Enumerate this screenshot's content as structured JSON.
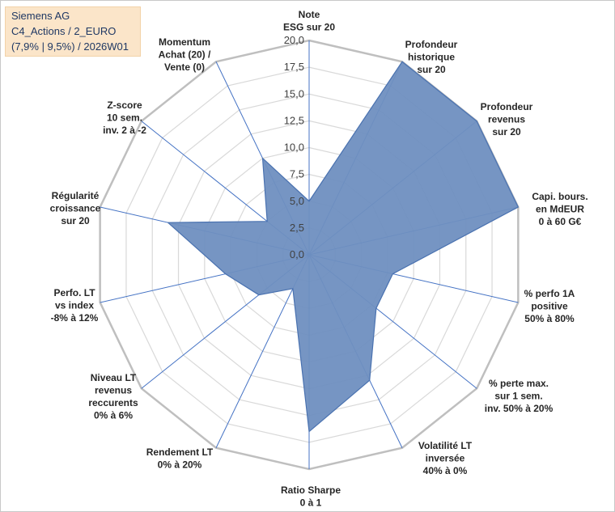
{
  "header": {
    "lines": [
      "Siemens AG",
      "C4_Actions / 2_EURO",
      "(7,9% | 9,5%) / 2026W01"
    ]
  },
  "colors": {
    "fill": "#6f8fc0",
    "stroke": "#4a72b0",
    "spoke": "#4472c4",
    "grid": "#d9d9d9",
    "info_bg": "#fbe5c9"
  },
  "chart_data": {
    "type": "radar",
    "rmin": 0,
    "rmax": 20,
    "tick_labels": [
      "0,0",
      "2,5",
      "5,0",
      "7,5",
      "10,0",
      "12,5",
      "15,0",
      "17,5",
      "20,0"
    ],
    "axes": [
      {
        "label": [
          "Note",
          "ESG sur 20"
        ],
        "value": 5.0
      },
      {
        "label": [
          "Profondeur",
          "historique",
          "sur 20"
        ],
        "value": 20.0
      },
      {
        "label": [
          "Profondeur",
          "revenus",
          "sur 20"
        ],
        "value": 20.0
      },
      {
        "label": [
          "Capi. bours.",
          "en MdEUR",
          "0 à 60 G€"
        ],
        "value": 20.0
      },
      {
        "label": [
          "% perfo 1A",
          "positive",
          "50% à 80%"
        ],
        "value": 8.0
      },
      {
        "label": [
          "% perte max.",
          "sur 1 sem.",
          "inv. 50% à 20%"
        ],
        "value": 8.0
      },
      {
        "label": [
          "Volatilité LT",
          "inversée",
          "40% à 0%"
        ],
        "value": 13.0
      },
      {
        "label": [
          "Ratio Sharpe",
          "0 à 1"
        ],
        "value": 16.5
      },
      {
        "label": [
          "Rendement LT",
          "0% à 20%"
        ],
        "value": 3.5
      },
      {
        "label": [
          "Niveau LT",
          "revenus",
          "reccurents",
          "0% à 6%"
        ],
        "value": 6.0
      },
      {
        "label": [
          "Perfo. LT",
          "vs index",
          "-8% à 12%"
        ],
        "value": 8.0
      },
      {
        "label": [
          "Régularité",
          "croissance",
          "sur 20"
        ],
        "value": 13.5
      },
      {
        "label": [
          "Z-score",
          "10 sem.",
          "inv. 2 à -2"
        ],
        "value": 5.0
      },
      {
        "label": [
          "Momentum",
          "Achat (20) /",
          "Vente (0)"
        ],
        "value": 10.0
      }
    ]
  }
}
